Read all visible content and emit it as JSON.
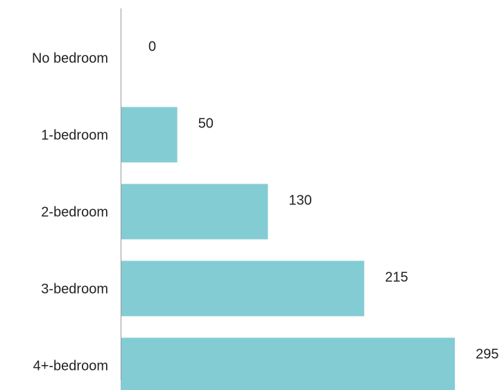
{
  "chart_data": {
    "type": "bar",
    "orientation": "horizontal",
    "categories": [
      "No bedroom",
      "1-bedroom",
      "2-bedroom",
      "3-bedroom",
      "4+-bedroom"
    ],
    "values": [
      0,
      50,
      130,
      215,
      295
    ],
    "data_labels": [
      "0",
      "50",
      "130",
      "215",
      "295"
    ],
    "title": "",
    "xlabel": "",
    "ylabel": "",
    "xlim": [
      0,
      295
    ],
    "grid": false,
    "legend": "none",
    "bar_color": "#84CCD3",
    "axis_color": "#999999"
  }
}
